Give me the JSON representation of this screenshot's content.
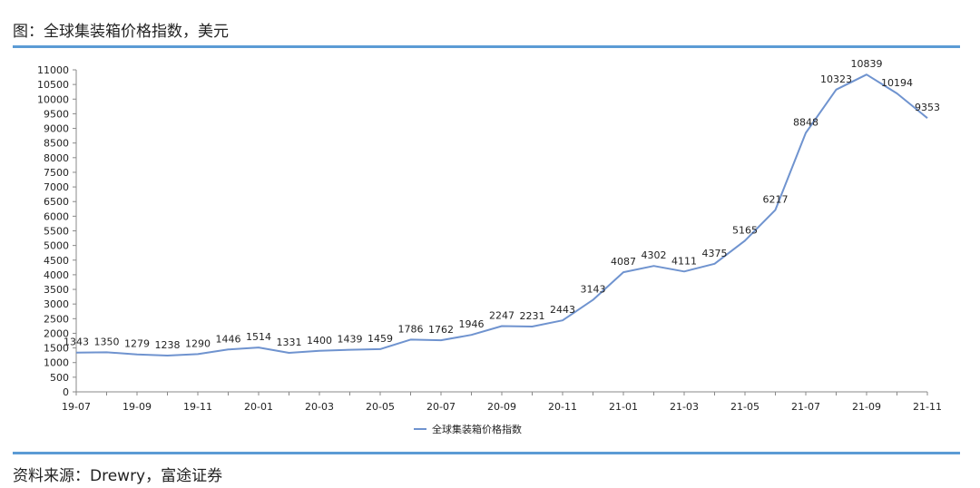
{
  "header": {
    "title": "图：全球集装箱价格指数，美元"
  },
  "footer": {
    "source": "资料来源：Drewry，富途证券"
  },
  "colors": {
    "line": "#6f93cf",
    "rule": "#5b9bd5"
  },
  "chart_data": {
    "type": "line",
    "x": [
      "19-07",
      "19-08",
      "19-09",
      "19-10",
      "19-11",
      "19-12",
      "20-01",
      "20-02",
      "20-03",
      "20-04",
      "20-05",
      "20-06",
      "20-07",
      "20-08",
      "20-09",
      "20-10",
      "20-11",
      "20-12",
      "21-01",
      "21-02",
      "21-03",
      "21-04",
      "21-05",
      "21-06",
      "21-07",
      "21-08",
      "21-09",
      "21-10",
      "21-11"
    ],
    "x_tick_labels": [
      "19-07",
      "19-09",
      "19-11",
      "20-01",
      "20-03",
      "20-05",
      "20-07",
      "20-09",
      "20-11",
      "21-01",
      "21-03",
      "21-05",
      "21-07",
      "21-09",
      "21-11"
    ],
    "series": [
      {
        "name": "全球集装箱价格指数",
        "values": [
          1343,
          1350,
          1279,
          1238,
          1290,
          1446,
          1514,
          1331,
          1400,
          1439,
          1459,
          1786,
          1762,
          1946,
          2247,
          2231,
          2443,
          3143,
          4087,
          4302,
          4111,
          4375,
          5165,
          6217,
          8848,
          10323,
          10839,
          10194,
          9353
        ]
      }
    ],
    "data_labels": [
      "1343",
      "1350",
      "1279",
      "1238",
      "1290",
      "1446",
      "1514",
      "1331",
      "1400",
      "1439",
      "1459",
      "1786",
      "1762",
      "1946",
      "2247",
      "2231",
      "2443",
      "3143",
      "4087",
      "4302",
      "4111",
      "4375",
      "5165",
      "6217",
      "8848",
      "10323",
      "10839",
      "10194",
      "9353"
    ],
    "y_tick_labels": [
      "0",
      "500",
      "1000",
      "1500",
      "2000",
      "2500",
      "3000",
      "3500",
      "4000",
      "4500",
      "5000",
      "5500",
      "6000",
      "6500",
      "7000",
      "7500",
      "8000",
      "8500",
      "9000",
      "9500",
      "10000",
      "10500",
      "11000"
    ],
    "ylim": [
      0,
      11000
    ],
    "title": "",
    "xlabel": "",
    "ylabel": "",
    "grid": false,
    "legend": "bottom-center"
  }
}
